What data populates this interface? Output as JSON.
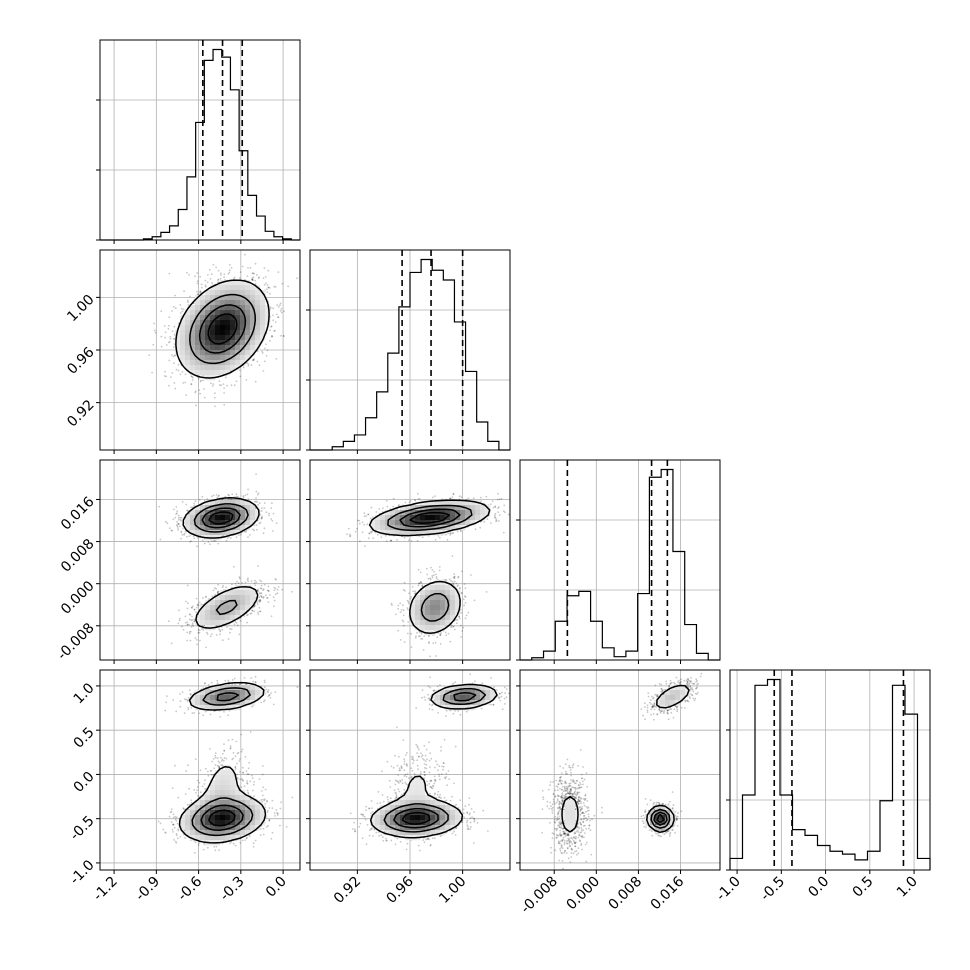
{
  "chart_data": {
    "type": "corner",
    "grid": true,
    "params": [
      {
        "range": [
          -1.3,
          0.12
        ],
        "ticks": [
          "-1.2",
          "-0.9",
          "-0.6",
          "-0.3",
          "0.0"
        ],
        "tick_values": [
          -1.2,
          -0.9,
          -0.6,
          -0.3,
          0.0
        ]
      },
      {
        "range": [
          0.884,
          1.036
        ],
        "ticks": [
          "0.92",
          "0.96",
          "1.00"
        ],
        "tick_values": [
          0.92,
          0.96,
          1.0
        ]
      },
      {
        "range": [
          -0.0145,
          0.0235
        ],
        "ticks": [
          "-0.008",
          "0.000",
          "0.008",
          "0.016"
        ],
        "tick_values": [
          -0.008,
          0.0,
          0.008,
          0.016
        ]
      },
      {
        "range": [
          -1.08,
          1.18
        ],
        "ticks": [
          "-1.0",
          "-0.5",
          "0.0",
          "0.5",
          "1.0"
        ],
        "tick_values": [
          -1.0,
          -0.5,
          0.0,
          0.5,
          1.0
        ]
      }
    ],
    "quantiles": [
      [
        -0.57,
        -0.43,
        -0.29
      ],
      [
        0.954,
        0.976,
        1.0
      ],
      [
        -0.0055,
        0.0105,
        0.0135
      ],
      [
        -0.58,
        -0.38,
        0.88
      ]
    ],
    "histograms": [
      {
        "edges_range": [
          -1.3,
          0.12
        ],
        "counts": [
          0,
          0,
          0,
          0,
          0,
          1,
          3,
          7,
          13,
          28,
          58,
          108,
          165,
          175,
          168,
          138,
          82,
          41,
          22,
          8,
          3,
          1,
          0
        ]
      },
      {
        "edges_range": [
          0.884,
          1.036
        ],
        "counts": [
          0,
          0,
          3,
          8,
          14,
          30,
          54,
          90,
          133,
          165,
          177,
          167,
          158,
          119,
          73,
          26,
          8,
          0
        ]
      },
      {
        "edges_range": [
          -0.0145,
          0.0235
        ],
        "counts": [
          0,
          2,
          8,
          35,
          58,
          62,
          35,
          11,
          3,
          8,
          60,
          165,
          172,
          98,
          32,
          6,
          0
        ]
      },
      {
        "edges_range": [
          -1.08,
          1.18
        ],
        "counts": [
          8,
          52,
          128,
          132,
          52,
          28,
          24,
          17,
          13,
          11,
          7,
          13,
          48,
          128,
          108,
          8
        ]
      }
    ],
    "pairs": [
      {
        "row": 1,
        "col": 0,
        "modes": [
          {
            "mx": -0.43,
            "my": 0.976,
            "sx": 0.16,
            "sy": 0.018,
            "rho": 0.3,
            "w": 1.0
          }
        ]
      },
      {
        "row": 2,
        "col": 0,
        "modes": [
          {
            "mx": -0.44,
            "my": 0.0125,
            "sx": 0.13,
            "sy": 0.0018,
            "rho": 0.25,
            "w": 0.67
          },
          {
            "mx": -0.4,
            "my": -0.0045,
            "sx": 0.14,
            "sy": 0.0025,
            "rho": 0.6,
            "w": 0.33
          }
        ]
      },
      {
        "row": 2,
        "col": 1,
        "modes": [
          {
            "mx": 0.975,
            "my": 0.0125,
            "sx": 0.022,
            "sy": 0.0016,
            "rho": 0.4,
            "w": 0.67
          },
          {
            "mx": 0.979,
            "my": -0.0045,
            "sx": 0.011,
            "sy": 0.0028,
            "rho": 0.2,
            "w": 0.33
          }
        ]
      },
      {
        "row": 3,
        "col": 0,
        "modes": [
          {
            "mx": -0.4,
            "my": 0.88,
            "sx": 0.14,
            "sy": 0.08,
            "rho": 0.35,
            "w": 0.25
          },
          {
            "mx": -0.43,
            "my": -0.5,
            "sx": 0.15,
            "sy": 0.13,
            "rho": 0.2,
            "w": 0.6
          },
          {
            "mx": -0.43,
            "my": -0.15,
            "sx": 0.1,
            "sy": 0.25,
            "rho": 0.3,
            "w": 0.15
          }
        ]
      },
      {
        "row": 3,
        "col": 1,
        "modes": [
          {
            "mx": 1.001,
            "my": 0.88,
            "sx": 0.013,
            "sy": 0.07,
            "rho": 0.2,
            "w": 0.25
          },
          {
            "mx": 0.965,
            "my": -0.5,
            "sx": 0.017,
            "sy": 0.1,
            "rho": 0.1,
            "w": 0.6
          },
          {
            "mx": 0.965,
            "my": -0.15,
            "sx": 0.012,
            "sy": 0.25,
            "rho": 0.2,
            "w": 0.15
          }
        ]
      },
      {
        "row": 3,
        "col": 2,
        "modes": [
          {
            "mx": 0.0145,
            "my": 0.88,
            "sx": 0.0022,
            "sy": 0.09,
            "rho": 0.6,
            "w": 0.25
          },
          {
            "mx": -0.005,
            "my": -0.45,
            "sx": 0.0017,
            "sy": 0.22,
            "rho": 0.0,
            "w": 0.33
          },
          {
            "mx": 0.0122,
            "my": -0.5,
            "sx": 0.0012,
            "sy": 0.07,
            "rho": 0.0,
            "w": 0.42
          }
        ]
      }
    ]
  }
}
